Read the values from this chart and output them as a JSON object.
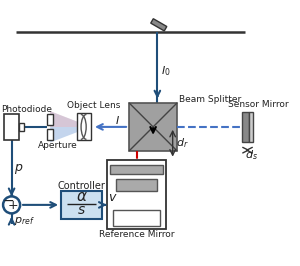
{
  "bg_color": "#ffffff",
  "line_color": "#1f4e79",
  "red_dashed": "#cc0000",
  "blue_dashed": "#4472c4",
  "light_blue_fill": "#cce0f0",
  "beam_splitter_gray": "#a0a0a0",
  "figsize": [
    3.0,
    2.66
  ],
  "dpi": 100,
  "xlim": [
    0,
    10
  ],
  "ylim": [
    0,
    8.87
  ]
}
